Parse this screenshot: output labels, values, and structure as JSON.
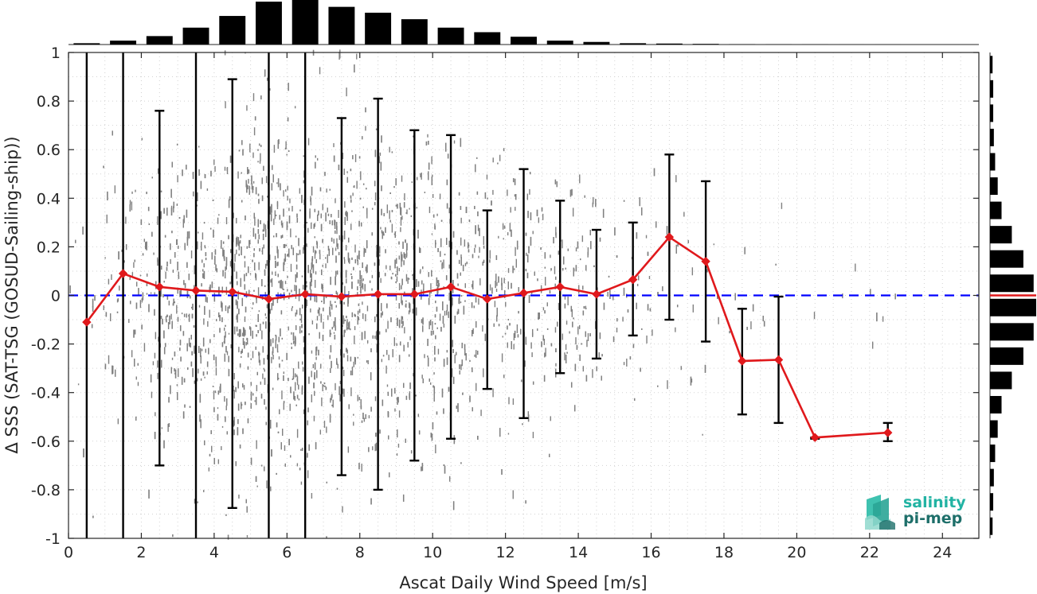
{
  "chart_data": {
    "type": "scatter",
    "xlabel": "Ascat Daily Wind Speed [m/s]",
    "ylabel": "Δ SSS (SAT-TSG (GOSUD-Sailing-ship))",
    "xlim": [
      0,
      25
    ],
    "ylim": [
      -1,
      1
    ],
    "x_ticks": [
      0,
      2,
      4,
      6,
      8,
      10,
      12,
      14,
      16,
      18,
      20,
      22,
      24
    ],
    "y_ticks": [
      1,
      0.8,
      0.6,
      0.4,
      0.2,
      0,
      -0.2,
      -0.4,
      -0.6,
      -0.8,
      -1
    ],
    "grid": "dotted",
    "reference_line": {
      "y": 0,
      "style": "dashed",
      "color": "#0000ff"
    },
    "series": [
      {
        "kind": "binned_mean",
        "color": "#e0191c",
        "x": [
          0.5,
          1.5,
          2.5,
          3.5,
          4.5,
          5.5,
          6.5,
          7.5,
          8.5,
          9.5,
          10.5,
          11.5,
          12.5,
          13.5,
          14.5,
          15.5,
          16.5,
          17.5,
          18.5,
          19.5,
          20.5,
          22.5
        ],
        "y": [
          -0.11,
          0.09,
          0.035,
          0.02,
          0.015,
          -0.015,
          0.005,
          -0.005,
          0.005,
          0.005,
          0.035,
          -0.015,
          0.01,
          0.035,
          0.005,
          0.065,
          0.24,
          0.14,
          -0.27,
          -0.265,
          -0.585,
          -0.565
        ],
        "err_low": [
          -1.0,
          -1.0,
          -0.7,
          -1.0,
          -0.875,
          -1.0,
          -1.0,
          -0.74,
          -0.8,
          -0.68,
          -0.59,
          -0.385,
          -0.505,
          -0.32,
          -0.26,
          -0.165,
          -0.1,
          -0.19,
          -0.49,
          -0.525,
          -0.59,
          -0.6
        ],
        "err_high": [
          1.0,
          1.0,
          0.76,
          1.0,
          0.89,
          1.0,
          1.0,
          0.73,
          0.81,
          0.68,
          0.66,
          0.35,
          0.52,
          0.39,
          0.27,
          0.3,
          0.58,
          0.47,
          -0.055,
          -0.005,
          -0.585,
          -0.525
        ]
      }
    ],
    "scatter_cloud": {
      "color": "#808080",
      "x_range": [
        0,
        23
      ],
      "spread_by_wind": [
        {
          "x": 0.5,
          "sd": 0.3,
          "density": 0.05
        },
        {
          "x": 2.5,
          "sd": 0.32,
          "density": 0.4
        },
        {
          "x": 5.5,
          "sd": 0.35,
          "density": 1.0
        },
        {
          "x": 8.5,
          "sd": 0.33,
          "density": 0.75
        },
        {
          "x": 11.5,
          "sd": 0.3,
          "density": 0.45
        },
        {
          "x": 14.5,
          "sd": 0.22,
          "density": 0.15
        },
        {
          "x": 17.5,
          "sd": 0.25,
          "density": 0.03
        },
        {
          "x": 22.5,
          "sd": 0.1,
          "density": 0.005
        }
      ]
    },
    "top_histogram": {
      "bins": [
        0.5,
        1.5,
        2.5,
        3.5,
        4.5,
        5.5,
        6.5,
        7.5,
        8.5,
        9.5,
        10.5,
        11.5,
        12.5,
        13.5,
        14.5,
        15.5,
        16.5,
        17.5,
        18.5,
        19.5,
        20.5,
        21.5,
        22.5
      ],
      "counts": [
        0.02,
        0.06,
        0.13,
        0.26,
        0.44,
        0.66,
        0.71,
        0.58,
        0.49,
        0.39,
        0.26,
        0.19,
        0.12,
        0.06,
        0.04,
        0.02,
        0.015,
        0.01,
        0.005,
        0.003,
        0.002,
        0.001,
        0.001
      ]
    },
    "side_histogram": {
      "bins": [
        0.95,
        0.85,
        0.75,
        0.65,
        0.55,
        0.45,
        0.35,
        0.25,
        0.15,
        0.05,
        -0.05,
        -0.15,
        -0.25,
        -0.35,
        -0.45,
        -0.55,
        -0.65,
        -0.75,
        -0.85,
        -0.95
      ],
      "counts": [
        0.04,
        0.05,
        0.05,
        0.06,
        0.08,
        0.12,
        0.18,
        0.34,
        0.52,
        0.68,
        0.72,
        0.68,
        0.52,
        0.34,
        0.18,
        0.12,
        0.08,
        0.06,
        0.05,
        0.04
      ],
      "mean_marker_y": 0
    }
  },
  "logo": {
    "line1": "salinity",
    "line2": "pi-mep"
  }
}
